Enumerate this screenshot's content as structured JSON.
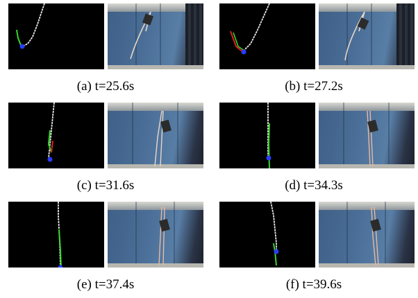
{
  "panels": [
    {
      "id": "a",
      "caption": "(a) t=25.6s"
    },
    {
      "id": "b",
      "caption": "(b) t=27.2s"
    },
    {
      "id": "c",
      "caption": "(c) t=31.6s"
    },
    {
      "id": "d",
      "caption": "(d) t=34.3s"
    },
    {
      "id": "e",
      "caption": "(e) t=37.4s"
    },
    {
      "id": "f",
      "caption": "(f) t=39.6s"
    }
  ],
  "colors": {
    "simulation_background": "#000000",
    "rope_trace": "#e8e8e8",
    "goal_marker": "#2a3cff",
    "green_trace": "#37d62a",
    "red_trace": "#e02020",
    "curtain": "#4a6e97"
  }
}
